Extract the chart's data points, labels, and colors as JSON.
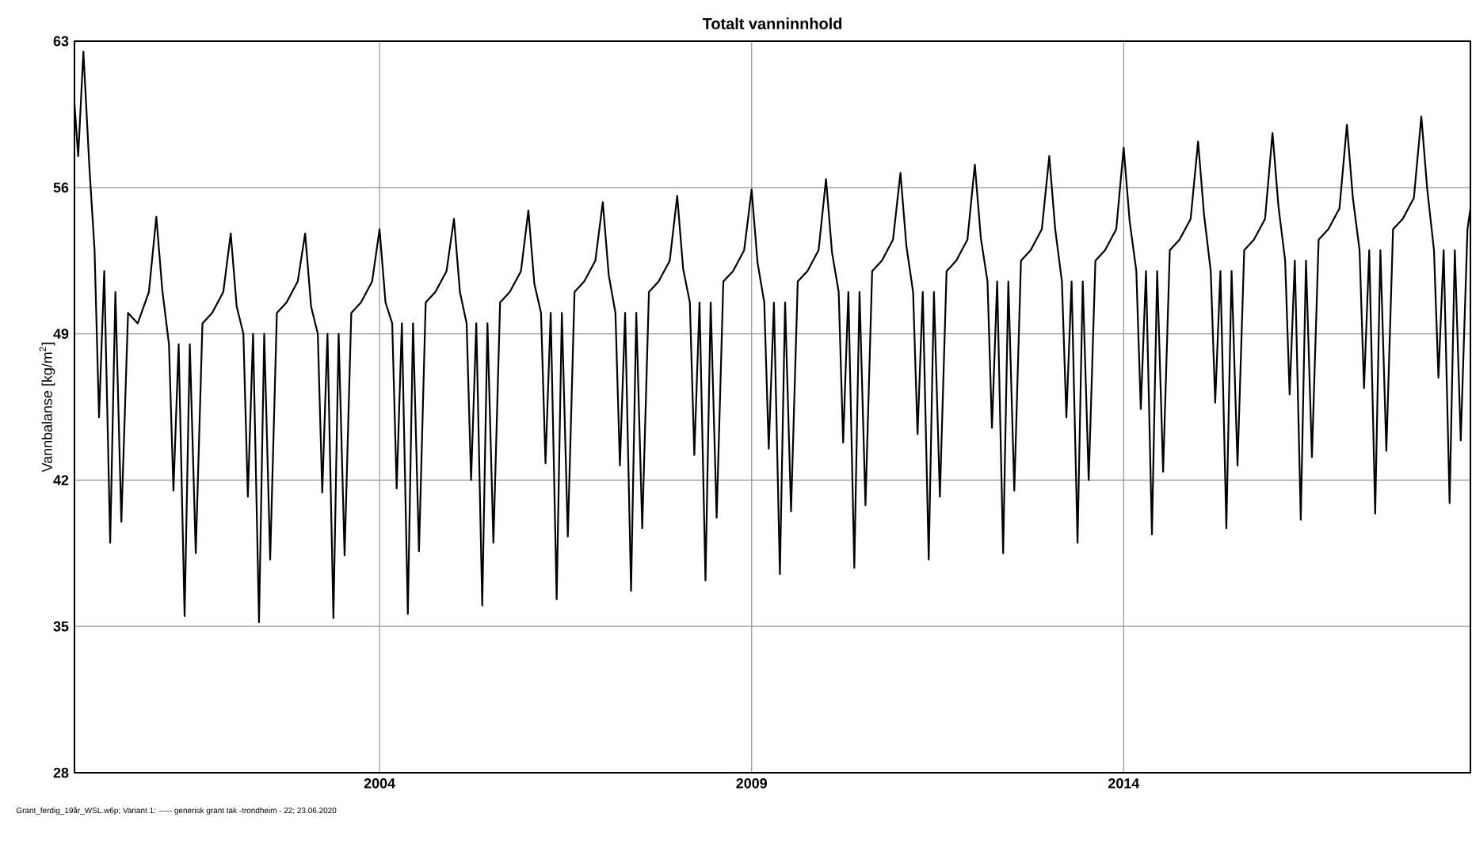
{
  "chart_data": {
    "type": "line",
    "title": "Totalt vanninnhold",
    "ylabel": "Vannbalanse [kg/m$^{2}$]",
    "annotations": [
      "Grant_ferdig_19år_WSL.w6p; Variant 1: ----- generisk grant tak -trondheim - 22; 23.06.2020"
    ],
    "xlim": [
      1999.9,
      2018.66
    ],
    "xticks": [
      2004,
      2009,
      2014
    ],
    "ylim": [
      28,
      63
    ],
    "yticks": [
      28,
      35,
      42,
      49,
      56,
      63
    ],
    "grid": true,
    "marker": "none",
    "line_style": "solid",
    "series": [
      {
        "color": "#000000",
        "x": [
          1999.9,
          1999.95,
          2000.02,
          2000.1,
          2000.17,
          2000.23,
          2000.3,
          2000.38,
          2000.45,
          2000.53,
          2000.62,
          2000.75,
          2000.9,
          2001,
          2001.08,
          2001.17,
          2001.23,
          2001.3,
          2001.38,
          2001.45,
          2001.53,
          2001.62,
          2001.75,
          2001.9,
          2002,
          2002.08,
          2002.17,
          2002.23,
          2002.3,
          2002.38,
          2002.45,
          2002.53,
          2002.62,
          2002.75,
          2002.9,
          2003,
          2003.08,
          2003.17,
          2003.23,
          2003.3,
          2003.38,
          2003.45,
          2003.53,
          2003.62,
          2003.75,
          2003.9,
          2004,
          2004.08,
          2004.17,
          2004.23,
          2004.3,
          2004.38,
          2004.45,
          2004.53,
          2004.62,
          2004.75,
          2004.9,
          2005,
          2005.08,
          2005.17,
          2005.23,
          2005.3,
          2005.38,
          2005.45,
          2005.53,
          2005.62,
          2005.75,
          2005.9,
          2006,
          2006.08,
          2006.17,
          2006.23,
          2006.3,
          2006.38,
          2006.45,
          2006.53,
          2006.62,
          2006.75,
          2006.9,
          2007,
          2007.08,
          2007.17,
          2007.23,
          2007.3,
          2007.38,
          2007.45,
          2007.53,
          2007.62,
          2007.75,
          2007.9,
          2008,
          2008.08,
          2008.17,
          2008.23,
          2008.3,
          2008.38,
          2008.45,
          2008.53,
          2008.62,
          2008.75,
          2008.9,
          2009,
          2009.08,
          2009.17,
          2009.23,
          2009.3,
          2009.38,
          2009.45,
          2009.53,
          2009.62,
          2009.75,
          2009.9,
          2010,
          2010.08,
          2010.17,
          2010.23,
          2010.3,
          2010.38,
          2010.45,
          2010.53,
          2010.62,
          2010.75,
          2010.9,
          2011,
          2011.08,
          2011.17,
          2011.23,
          2011.3,
          2011.38,
          2011.45,
          2011.53,
          2011.62,
          2011.75,
          2011.9,
          2012,
          2012.08,
          2012.17,
          2012.23,
          2012.3,
          2012.38,
          2012.45,
          2012.53,
          2012.62,
          2012.75,
          2012.9,
          2013,
          2013.08,
          2013.17,
          2013.23,
          2013.3,
          2013.38,
          2013.45,
          2013.53,
          2013.62,
          2013.75,
          2013.9,
          2014,
          2014.08,
          2014.17,
          2014.23,
          2014.3,
          2014.38,
          2014.45,
          2014.53,
          2014.62,
          2014.75,
          2014.9,
          2015,
          2015.08,
          2015.17,
          2015.23,
          2015.3,
          2015.38,
          2015.45,
          2015.53,
          2015.62,
          2015.75,
          2015.9,
          2016,
          2016.08,
          2016.17,
          2016.23,
          2016.3,
          2016.38,
          2016.45,
          2016.53,
          2016.62,
          2016.75,
          2016.9,
          2017,
          2017.08,
          2017.17,
          2017.23,
          2017.3,
          2017.38,
          2017.45,
          2017.53,
          2017.62,
          2017.75,
          2017.9,
          2018,
          2018.08,
          2018.17,
          2018.23,
          2018.3,
          2018.38,
          2018.45,
          2018.53,
          2018.62,
          2018.66
        ],
        "values": [
          60,
          57.5,
          62.5,
          57,
          53,
          45,
          52,
          39,
          51,
          40,
          50,
          49.5,
          51,
          54.6,
          51.1,
          48.5,
          41.5,
          48.5,
          35.5,
          48.5,
          38.5,
          49.5,
          50,
          51,
          53.8,
          50.3,
          49,
          41.2,
          49,
          35.2,
          49,
          38.2,
          50,
          50.5,
          51.5,
          53.8,
          50.3,
          49,
          41.4,
          49,
          35.4,
          49,
          38.4,
          50,
          50.5,
          51.5,
          54,
          50.5,
          49.5,
          41.6,
          49.5,
          35.6,
          49.5,
          38.6,
          50.5,
          51,
          52,
          54.5,
          51,
          49.5,
          42,
          49.5,
          36,
          49.5,
          39,
          50.5,
          51,
          52,
          54.9,
          51.4,
          50,
          42.8,
          50,
          36.3,
          50,
          39.3,
          51,
          51.5,
          52.5,
          55.3,
          51.8,
          50,
          42.7,
          50,
          36.7,
          50,
          39.7,
          51,
          51.5,
          52.5,
          55.6,
          52.1,
          50.5,
          43.2,
          50.5,
          37.2,
          50.5,
          40.2,
          51.5,
          52,
          53,
          55.9,
          52.4,
          50.5,
          43.5,
          50.5,
          37.5,
          50.5,
          40.5,
          51.5,
          52,
          53,
          56.4,
          52.9,
          51,
          43.8,
          51,
          37.8,
          51,
          40.8,
          52,
          52.5,
          53.5,
          56.7,
          53.2,
          51,
          44.2,
          51,
          38.2,
          51,
          41.2,
          52,
          52.5,
          53.5,
          57.1,
          53.6,
          51.5,
          44.5,
          51.5,
          38.5,
          51.5,
          41.5,
          52.5,
          53,
          54,
          57.5,
          54,
          51.5,
          45,
          51.5,
          39,
          51.5,
          42,
          52.5,
          53,
          54,
          57.9,
          54.4,
          52,
          45.4,
          52,
          39.4,
          52,
          42.4,
          53,
          53.5,
          54.5,
          58.2,
          54.7,
          52,
          45.7,
          52,
          39.7,
          52,
          42.7,
          53,
          53.5,
          54.5,
          58.6,
          55.1,
          52.5,
          46.1,
          52.5,
          40.1,
          52.5,
          43.1,
          53.5,
          54,
          55,
          59,
          55.5,
          53,
          46.4,
          53,
          40.4,
          53,
          43.4,
          54,
          54.5,
          55.5,
          59.4,
          55.9,
          53,
          46.9,
          53,
          40.9,
          53,
          43.9,
          54,
          55
        ]
      }
    ]
  }
}
